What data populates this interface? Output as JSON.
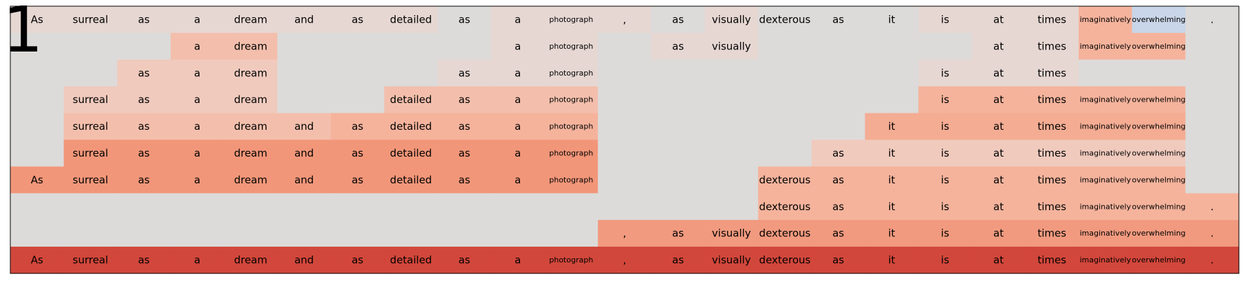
{
  "figure_label": "1",
  "chart_data": {
    "type": "heatmap",
    "columns": [
      "As",
      "surreal",
      "as",
      "a",
      "dream",
      "and",
      "as",
      "detailed",
      "as",
      "a",
      "photograph",
      ",",
      "as",
      "visually",
      "dexterous",
      "as",
      "it",
      "is",
      "at",
      "times",
      "imaginatively",
      "overwhelming",
      "."
    ],
    "small_text_columns": [
      10,
      20,
      21
    ],
    "colors": {
      "empty": "#dcdbda",
      "0": "#e6d7d2",
      "1": "#f0cabd",
      "2": "#f3bfac",
      "3": "#f5b39c",
      "4": "#f4ac93",
      "5": "#f29679",
      "6": "#f19a7f",
      "7": "#d2473b",
      "blue": "#c9d5e8"
    },
    "rows": [
      {
        "words": [
          "As",
          "surreal",
          "as",
          "a",
          "dream",
          "and",
          "as",
          "detailed",
          "as",
          "a",
          "photograph",
          ",",
          "as",
          "visually",
          "dexterous",
          "as",
          "it",
          "is",
          "at",
          "times",
          "imaginatively",
          "overwhelming",
          "."
        ],
        "levels": [
          0,
          0,
          0,
          0,
          0,
          0,
          0,
          0,
          "empty",
          0,
          0,
          0,
          "empty",
          0,
          "empty",
          "empty",
          "empty",
          0,
          0,
          0,
          3,
          "blue",
          "empty"
        ]
      },
      {
        "words": [
          "",
          "",
          "",
          "a",
          "dream",
          "",
          "",
          "",
          "",
          "a",
          "photograph",
          "",
          "as",
          "visually",
          "",
          "",
          "",
          "",
          "at",
          "times",
          "imaginatively",
          "overwhelming",
          ""
        ],
        "levels": [
          "empty",
          "empty",
          "empty",
          2,
          2,
          "empty",
          "empty",
          "empty",
          "empty",
          0,
          0,
          "empty",
          0,
          0,
          "empty",
          "empty",
          "empty",
          "empty",
          0,
          0,
          3,
          3,
          "empty"
        ]
      },
      {
        "words": [
          "",
          "",
          "as",
          "a",
          "dream",
          "",
          "",
          "",
          "as",
          "a",
          "photograph",
          "",
          "",
          "",
          "",
          "",
          "",
          "is",
          "at",
          "times",
          "",
          "",
          ""
        ],
        "levels": [
          "empty",
          "empty",
          1,
          1,
          1,
          "empty",
          "empty",
          "empty",
          0,
          0,
          0,
          "empty",
          "empty",
          "empty",
          "empty",
          "empty",
          "empty",
          0,
          0,
          0,
          "empty",
          "empty",
          "empty"
        ]
      },
      {
        "words": [
          "",
          "surreal",
          "as",
          "a",
          "dream",
          "",
          "",
          "detailed",
          "as",
          "a",
          "photograph",
          "",
          "",
          "",
          "",
          "",
          "",
          "is",
          "at",
          "times",
          "imaginatively",
          "overwhelming",
          ""
        ],
        "levels": [
          "empty",
          1,
          1,
          1,
          1,
          "empty",
          "empty",
          2,
          2,
          2,
          2,
          "empty",
          "empty",
          "empty",
          "empty",
          "empty",
          "empty",
          3,
          3,
          3,
          3,
          3,
          "empty"
        ]
      },
      {
        "words": [
          "",
          "surreal",
          "as",
          "a",
          "dream",
          "and",
          "as",
          "detailed",
          "as",
          "a",
          "photograph",
          "",
          "",
          "",
          "",
          "",
          "it",
          "is",
          "at",
          "times",
          "imaginatively",
          "overwhelming",
          ""
        ],
        "levels": [
          "empty",
          2,
          2,
          2,
          2,
          2,
          3,
          3,
          3,
          3,
          3,
          "empty",
          "empty",
          "empty",
          "empty",
          "empty",
          4,
          4,
          4,
          4,
          4,
          4,
          "empty"
        ]
      },
      {
        "words": [
          "",
          "surreal",
          "as",
          "a",
          "dream",
          "and",
          "as",
          "detailed",
          "as",
          "a",
          "photograph",
          "",
          "",
          "",
          "",
          "as",
          "it",
          "is",
          "at",
          "times",
          "imaginatively",
          "overwhelming",
          ""
        ],
        "levels": [
          "empty",
          5,
          5,
          5,
          5,
          5,
          5,
          5,
          5,
          5,
          5,
          "empty",
          "empty",
          "empty",
          "empty",
          1,
          1,
          1,
          1,
          1,
          1,
          1,
          "empty"
        ]
      },
      {
        "words": [
          "As",
          "surreal",
          "as",
          "a",
          "dream",
          "and",
          "as",
          "detailed",
          "as",
          "a",
          "photograph",
          "",
          "",
          "",
          "dexterous",
          "as",
          "it",
          "is",
          "at",
          "times",
          "imaginatively",
          "overwhelming",
          ""
        ],
        "levels": [
          5,
          5,
          5,
          5,
          5,
          5,
          5,
          5,
          5,
          5,
          5,
          "empty",
          "empty",
          "empty",
          3,
          3,
          3,
          3,
          3,
          3,
          3,
          3,
          "empty"
        ]
      },
      {
        "words": [
          "",
          "",
          "",
          "",
          "",
          "",
          "",
          "",
          "",
          "",
          "",
          "",
          "",
          "",
          "dexterous",
          "as",
          "it",
          "is",
          "at",
          "times",
          "imaginatively",
          "overwhelming",
          "."
        ],
        "levels": [
          "empty",
          "empty",
          "empty",
          "empty",
          "empty",
          "empty",
          "empty",
          "empty",
          "empty",
          "empty",
          "empty",
          "empty",
          "empty",
          "empty",
          3,
          3,
          3,
          3,
          3,
          3,
          3,
          3,
          3
        ]
      },
      {
        "words": [
          "",
          "",
          "",
          "",
          "",
          "",
          "",
          "",
          "",
          "",
          "",
          ",",
          "as",
          "visually",
          "dexterous",
          "as",
          "it",
          "is",
          "at",
          "times",
          "imaginatively",
          "overwhelming",
          "."
        ],
        "levels": [
          "empty",
          "empty",
          "empty",
          "empty",
          "empty",
          "empty",
          "empty",
          "empty",
          "empty",
          "empty",
          "empty",
          6,
          6,
          6,
          6,
          6,
          6,
          6,
          6,
          6,
          6,
          6,
          6
        ]
      },
      {
        "words": [
          "As",
          "surreal",
          "as",
          "a",
          "dream",
          "and",
          "as",
          "detailed",
          "as",
          "a",
          "photograph",
          ",",
          "as",
          "visually",
          "dexterous",
          "as",
          "it",
          "is",
          "at",
          "times",
          "imaginatively",
          "overwhelming",
          "."
        ],
        "levels": [
          7,
          7,
          7,
          7,
          7,
          7,
          7,
          7,
          7,
          7,
          7,
          7,
          7,
          7,
          7,
          7,
          7,
          7,
          7,
          7,
          7,
          7,
          7
        ]
      }
    ]
  }
}
